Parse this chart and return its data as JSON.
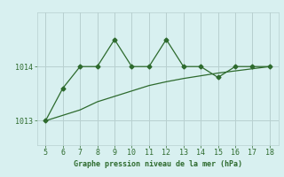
{
  "x": [
    5,
    6,
    7,
    8,
    9,
    10,
    11,
    12,
    13,
    14,
    15,
    16,
    17,
    18
  ],
  "y_line1": [
    1013.0,
    1013.6,
    1014.0,
    1014.0,
    1014.5,
    1014.0,
    1014.0,
    1014.5,
    1014.0,
    1014.0,
    1013.8,
    1014.0,
    1014.0,
    1014.0
  ],
  "y_line2": [
    1013.0,
    1013.1,
    1013.2,
    1013.35,
    1013.45,
    1013.55,
    1013.65,
    1013.72,
    1013.78,
    1013.83,
    1013.88,
    1013.92,
    1013.96,
    1014.0
  ],
  "line_color": "#2d6a2d",
  "bg_color": "#d8f0f0",
  "grid_color": "#b8d0d0",
  "xlabel": "Graphe pression niveau de la mer (hPa)",
  "yticks": [
    1013,
    1014
  ],
  "xticks": [
    5,
    6,
    7,
    8,
    9,
    10,
    11,
    12,
    13,
    14,
    15,
    16,
    17,
    18
  ],
  "ylim": [
    1012.55,
    1015.0
  ],
  "xlim": [
    4.5,
    18.5
  ]
}
